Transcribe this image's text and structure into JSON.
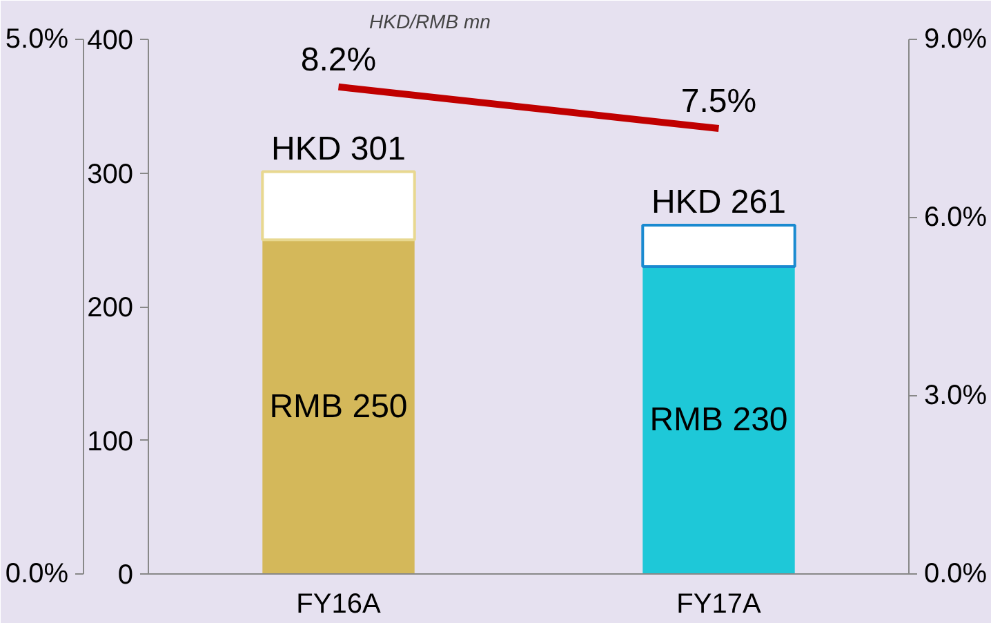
{
  "chart_data": {
    "type": "bar",
    "ylabel": "HKD/RMB mn",
    "stacked": true,
    "categories": [
      "FY16A",
      "FY17A"
    ],
    "ylim": [
      0,
      400
    ],
    "yticks": [
      0,
      100,
      200,
      300,
      400
    ],
    "y2lim": [
      0,
      9
    ],
    "y2ticks": [
      {
        "value": 0,
        "label": "0.0%"
      },
      {
        "value": 3,
        "label": "3.0%"
      },
      {
        "value": 6,
        "label": "6.0%"
      },
      {
        "value": 9,
        "label": "9.0%"
      }
    ],
    "y3lim": [
      0,
      5
    ],
    "y3ticks": [
      {
        "value": 0,
        "label": "0.0%"
      },
      {
        "value": 5,
        "label": "5.0%"
      }
    ],
    "grid": false,
    "totals": [
      "HKD 301",
      "HKD 261"
    ],
    "series": [
      {
        "colors": [
          "#d4b85a",
          "#1ec8d8"
        ],
        "values": [
          250,
          230
        ],
        "value_labels": [
          "RMB 250",
          "RMB 230"
        ]
      },
      {
        "colors": [
          "#e8d890",
          "#1a8ad0"
        ],
        "values": [
          51,
          31
        ]
      },
      {
        "type": "line",
        "axis": "y2",
        "color": "#c00000",
        "values": [
          8.2,
          7.5
        ],
        "value_labels": [
          "8.2%",
          "7.5%"
        ],
        "marker": "none",
        "line_style": "solid"
      }
    ]
  }
}
